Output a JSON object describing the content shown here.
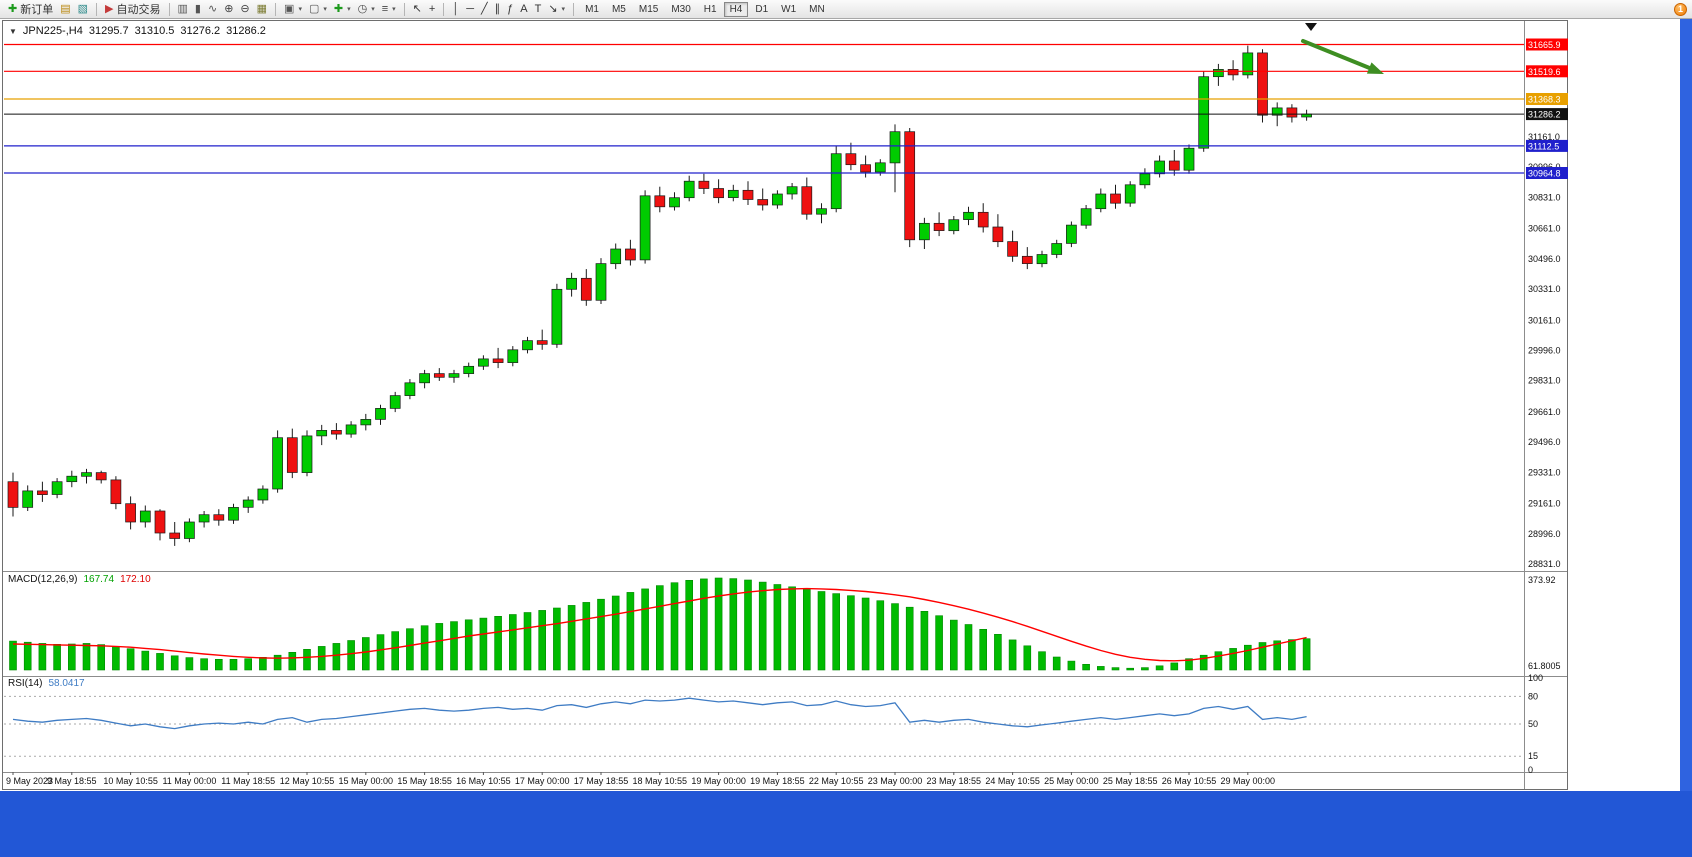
{
  "window": {
    "frame_color": "#2257d6",
    "scrollbar_color": "#2f63e0",
    "notification_badge": "1"
  },
  "toolbar": {
    "buttons": [
      {
        "name": "new-order-button",
        "icon": "new-order-icon",
        "glyph": "✚",
        "color": "#1d9b1d",
        "label": "新订单"
      },
      {
        "name": "chart-window-button",
        "icon": "chart-window-icon",
        "glyph": "▤",
        "color": "#b8860b"
      },
      {
        "name": "profiles-button",
        "icon": "profiles-icon",
        "glyph": "▧",
        "color": "#2e8b8b"
      },
      {
        "sep": true
      },
      {
        "name": "autotrading-button",
        "icon": "autotrading-icon",
        "glyph": "▶",
        "color": "#c43a3a",
        "label": "自动交易"
      },
      {
        "sep": true
      },
      {
        "name": "bar-chart-button",
        "icon": "bar-chart-icon",
        "glyph": "▥",
        "color": "#555555"
      },
      {
        "name": "candlestick-chart-button",
        "icon": "candlesticks-icon",
        "glyph": "▮",
        "color": "#555555"
      },
      {
        "name": "line-chart-button",
        "icon": "line-chart-icon",
        "glyph": "∿",
        "color": "#555555"
      },
      {
        "name": "zoom-in-button",
        "icon": "zoom-in-icon",
        "glyph": "⊕",
        "color": "#444444"
      },
      {
        "name": "zoom-out-button",
        "icon": "zoom-out-icon",
        "glyph": "⊖",
        "color": "#444444"
      },
      {
        "name": "tile-windows-button",
        "icon": "tile-windows-icon",
        "glyph": "▦",
        "color": "#7a7a30"
      },
      {
        "sep": true
      },
      {
        "name": "new-chart-button",
        "icon": "new-chart-icon",
        "glyph": "▣",
        "color": "#555555",
        "caret": true
      },
      {
        "name": "chart-list-button",
        "icon": "chart-list-icon",
        "glyph": "▢",
        "color": "#555555",
        "caret": true
      },
      {
        "name": "add-indicator-button",
        "icon": "add-indicator-icon",
        "glyph": "✚",
        "color": "#1d9b1d",
        "caret": true
      },
      {
        "name": "period-button",
        "icon": "clock-icon",
        "glyph": "◷",
        "color": "#444444",
        "caret": true
      },
      {
        "name": "templates-button",
        "icon": "templates-icon",
        "glyph": "≡",
        "color": "#444444",
        "caret": true
      },
      {
        "sep": true
      },
      {
        "name": "cursor-button",
        "icon": "cursor-icon",
        "glyph": "↖",
        "color": "#333333"
      },
      {
        "name": "crosshair-button",
        "icon": "crosshair-icon",
        "glyph": "+",
        "color": "#333333"
      },
      {
        "sep": true
      },
      {
        "name": "vertical-line-button",
        "icon": "vertical-line-icon",
        "glyph": "│",
        "color": "#333333"
      },
      {
        "name": "horizontal-line-button",
        "icon": "horizontal-line-icon",
        "glyph": "─",
        "color": "#333333"
      },
      {
        "name": "trendline-button",
        "icon": "trendline-icon",
        "glyph": "╱",
        "color": "#333333"
      },
      {
        "name": "channel-button",
        "icon": "equidistant-channel-icon",
        "glyph": "∥",
        "color": "#333333"
      },
      {
        "name": "fibonacci-button",
        "icon": "fibonacci-icon",
        "glyph": "ƒ",
        "color": "#333333"
      },
      {
        "name": "text-button",
        "icon": "text-icon",
        "glyph": "A",
        "color": "#333333"
      },
      {
        "name": "label-button",
        "icon": "text-label-icon",
        "glyph": "T",
        "color": "#333333"
      },
      {
        "name": "arrows-button",
        "icon": "arrow-tools-icon",
        "glyph": "↘",
        "color": "#333333",
        "caret": true
      },
      {
        "sep": true
      }
    ],
    "timeframes": [
      "M1",
      "M5",
      "M15",
      "M30",
      "H1",
      "H4",
      "D1",
      "W1",
      "MN"
    ],
    "active_timeframe": "H4"
  },
  "chart": {
    "collapse_icon": "▼",
    "symbol": "JPN225-,H4",
    "open": "31295.7",
    "high": "31310.5",
    "low": "31276.2",
    "close": "31286.2"
  },
  "macd": {
    "title": "MACD(12,26,9)",
    "value_main": "167.74",
    "value_signal": "172.10",
    "value_main_color": "#00a000",
    "value_signal_color": "#dd0000"
  },
  "rsi": {
    "title": "RSI(14)",
    "value": "58.0417",
    "value_color": "#3f7cc4"
  },
  "chart_data": [
    {
      "type": "candlestick",
      "title": "JPN225-,H4",
      "up_color": "#00CC00",
      "down_color": "#EE1111",
      "outline_color": "#1a1a1a",
      "grid": false,
      "ylim": [
        28790,
        31790
      ],
      "y_ticks": [
        31161,
        30996,
        30831,
        30661,
        30496,
        30331,
        30161,
        29996,
        29831,
        29661,
        29496,
        29331,
        29161,
        28996,
        28831
      ],
      "x_label_every": 4,
      "x_labels": [
        "9 May 2023",
        "9 May 18:55",
        "10 May 10:55",
        "11 May 00:00",
        "11 May 18:55",
        "12 May 10:55",
        "15 May 00:00",
        "15 May 18:55",
        "16 May 10:55",
        "17 May 00:00",
        "17 May 18:55",
        "18 May 10:55",
        "19 May 00:00",
        "19 May 18:55",
        "22 May 10:55",
        "23 May 00:00",
        "23 May 18:55",
        "24 May 10:55",
        "25 May 00:00",
        "25 May 18:55",
        "26 May 10:55",
        "29 May 00:00"
      ],
      "hlines": [
        {
          "price": 31665.9,
          "label": "31665.9",
          "color": "#FF0000"
        },
        {
          "price": 31519.6,
          "label": "31519.6",
          "color": "#FF0000"
        },
        {
          "price": 31368.3,
          "label": "31368.3",
          "color": "#E8A000"
        },
        {
          "price": 31112.5,
          "label": "31112.5",
          "color": "#2020CC"
        },
        {
          "price": 30964.8,
          "label": "30964.8",
          "color": "#2020CC"
        }
      ],
      "current_price": {
        "value": 31286.2,
        "label": "31286.2",
        "color": "#111111"
      },
      "annotations": [
        {
          "type": "arrow",
          "color": "#3E8E22"
        },
        {
          "type": "bar-marker",
          "color": "#111111"
        }
      ],
      "ohlc": [
        [
          29280,
          29330,
          29090,
          29140
        ],
        [
          29140,
          29260,
          29120,
          29230
        ],
        [
          29230,
          29280,
          29170,
          29210
        ],
        [
          29210,
          29300,
          29190,
          29280
        ],
        [
          29280,
          29340,
          29250,
          29310
        ],
        [
          29310,
          29350,
          29270,
          29330
        ],
        [
          29330,
          29340,
          29270,
          29290
        ],
        [
          29290,
          29310,
          29130,
          29160
        ],
        [
          29160,
          29200,
          29020,
          29060
        ],
        [
          29060,
          29150,
          29030,
          29120
        ],
        [
          29120,
          29130,
          28960,
          29000
        ],
        [
          29000,
          29060,
          28930,
          28970
        ],
        [
          28970,
          29080,
          28950,
          29060
        ],
        [
          29060,
          29120,
          29030,
          29100
        ],
        [
          29100,
          29130,
          29040,
          29070
        ],
        [
          29070,
          29160,
          29050,
          29140
        ],
        [
          29140,
          29200,
          29110,
          29180
        ],
        [
          29180,
          29260,
          29160,
          29240
        ],
        [
          29240,
          29560,
          29220,
          29520
        ],
        [
          29520,
          29570,
          29300,
          29330
        ],
        [
          29330,
          29560,
          29310,
          29530
        ],
        [
          29530,
          29590,
          29480,
          29560
        ],
        [
          29560,
          29600,
          29510,
          29540
        ],
        [
          29540,
          29610,
          29520,
          29590
        ],
        [
          29590,
          29650,
          29560,
          29620
        ],
        [
          29620,
          29700,
          29590,
          29680
        ],
        [
          29680,
          29770,
          29660,
          29750
        ],
        [
          29750,
          29840,
          29730,
          29820
        ],
        [
          29820,
          29890,
          29790,
          29870
        ],
        [
          29870,
          29900,
          29830,
          29850
        ],
        [
          29850,
          29890,
          29820,
          29870
        ],
        [
          29870,
          29930,
          29850,
          29910
        ],
        [
          29910,
          29970,
          29890,
          29950
        ],
        [
          29950,
          30010,
          29900,
          29930
        ],
        [
          29930,
          30020,
          29910,
          30000
        ],
        [
          30000,
          30070,
          29980,
          30050
        ],
        [
          30050,
          30110,
          30000,
          30030
        ],
        [
          30030,
          30360,
          30010,
          30330
        ],
        [
          30330,
          30420,
          30290,
          30390
        ],
        [
          30390,
          30440,
          30240,
          30270
        ],
        [
          30270,
          30500,
          30250,
          30470
        ],
        [
          30470,
          30580,
          30440,
          30550
        ],
        [
          30550,
          30600,
          30460,
          30490
        ],
        [
          30490,
          30870,
          30470,
          30840
        ],
        [
          30840,
          30890,
          30750,
          30780
        ],
        [
          30780,
          30860,
          30760,
          30830
        ],
        [
          30830,
          30950,
          30810,
          30920
        ],
        [
          30920,
          30960,
          30850,
          30880
        ],
        [
          30880,
          30930,
          30800,
          30830
        ],
        [
          30830,
          30900,
          30810,
          30870
        ],
        [
          30870,
          30920,
          30790,
          30820
        ],
        [
          30820,
          30880,
          30760,
          30790
        ],
        [
          30790,
          30870,
          30770,
          30850
        ],
        [
          30850,
          30910,
          30820,
          30890
        ],
        [
          30890,
          30940,
          30710,
          30740
        ],
        [
          30740,
          30800,
          30690,
          30770
        ],
        [
          30770,
          31110,
          30750,
          31070
        ],
        [
          31070,
          31130,
          30980,
          31010
        ],
        [
          31010,
          31060,
          30940,
          30970
        ],
        [
          30970,
          31040,
          30950,
          31020
        ],
        [
          31020,
          31230,
          30860,
          31190
        ],
        [
          31190,
          31210,
          30560,
          30600
        ],
        [
          30600,
          30720,
          30550,
          30690
        ],
        [
          30690,
          30750,
          30620,
          30650
        ],
        [
          30650,
          30730,
          30630,
          30710
        ],
        [
          30710,
          30780,
          30680,
          30750
        ],
        [
          30750,
          30800,
          30640,
          30670
        ],
        [
          30670,
          30740,
          30560,
          30590
        ],
        [
          30590,
          30650,
          30480,
          30510
        ],
        [
          30510,
          30560,
          30440,
          30470
        ],
        [
          30470,
          30540,
          30450,
          30520
        ],
        [
          30520,
          30600,
          30500,
          30580
        ],
        [
          30580,
          30700,
          30560,
          30680
        ],
        [
          30680,
          30790,
          30660,
          30770
        ],
        [
          30770,
          30880,
          30750,
          30850
        ],
        [
          30850,
          30900,
          30770,
          30800
        ],
        [
          30800,
          30920,
          30780,
          30900
        ],
        [
          30900,
          30990,
          30880,
          30960
        ],
        [
          30960,
          31060,
          30940,
          31030
        ],
        [
          31030,
          31090,
          30950,
          30980
        ],
        [
          30980,
          31120,
          30960,
          31100
        ],
        [
          31100,
          31520,
          31080,
          31490
        ],
        [
          31490,
          31560,
          31440,
          31530
        ],
        [
          31530,
          31580,
          31470,
          31500
        ],
        [
          31500,
          31660,
          31480,
          31620
        ],
        [
          31620,
          31640,
          31240,
          31280
        ],
        [
          31280,
          31350,
          31220,
          31320
        ],
        [
          31320,
          31340,
          31240,
          31270
        ],
        [
          31270,
          31310,
          31250,
          31286
        ]
      ]
    },
    {
      "type": "bar",
      "name": "MACD(12,26,9)",
      "bar_color": "#00BB00",
      "bar_outline": "#008800",
      "ylim": [
        61.8005,
        373.92
      ],
      "scale_labels": {
        "top": "373.92",
        "bottom": "61.8005"
      },
      "values": [
        160,
        156,
        152,
        149,
        150,
        152,
        148,
        142,
        134,
        126,
        118,
        110,
        104,
        100,
        98,
        98,
        100,
        105,
        112,
        122,
        132,
        142,
        152,
        162,
        172,
        182,
        192,
        202,
        212,
        220,
        226,
        232,
        238,
        244,
        250,
        257,
        264,
        272,
        281,
        291,
        302,
        313,
        325,
        337,
        348,
        358,
        366,
        371,
        374,
        372,
        367,
        360,
        352,
        344,
        336,
        328,
        321,
        314,
        306,
        297,
        287,
        275,
        261,
        246,
        231,
        216,
        200,
        183,
        164,
        144,
        124,
        106,
        92,
        81,
        74,
        70,
        68,
        70,
        76,
        86,
        100,
        112,
        124,
        135,
        146,
        155,
        161,
        165,
        168
      ],
      "signal": {
        "name": "signal",
        "color": "#FF0000",
        "values": [
          150,
          149,
          148,
          147,
          146,
          145,
          144,
          142,
          139,
          135,
          131,
          126,
          121,
          116,
          112,
          108,
          105,
          103,
          102,
          103,
          105,
          108,
          112,
          117,
          123,
          130,
          137,
          145,
          153,
          161,
          169,
          177,
          184,
          191,
          198,
          205,
          212,
          219,
          227,
          235,
          243,
          251,
          260,
          269,
          278,
          287,
          296,
          305,
          313,
          320,
          326,
          331,
          335,
          337,
          338,
          337,
          335,
          332,
          328,
          323,
          317,
          310,
          301,
          291,
          280,
          268,
          255,
          241,
          226,
          210,
          193,
          176,
          159,
          143,
          128,
          115,
          105,
          98,
          94,
          93,
          95,
          101,
          109,
          118,
          128,
          139,
          150,
          161,
          172
        ]
      }
    },
    {
      "type": "line",
      "name": "RSI(14)",
      "color": "#3F7CC4",
      "ylim": [
        0,
        100
      ],
      "levels": [
        80,
        50,
        15
      ],
      "y_tick_labels": [
        "100",
        "80",
        "50",
        "15",
        "0"
      ],
      "values": [
        55,
        53,
        52,
        54,
        55,
        56,
        54,
        51,
        48,
        50,
        47,
        45,
        48,
        50,
        51,
        50,
        52,
        50,
        55,
        57,
        52,
        55,
        56,
        58,
        60,
        62,
        64,
        66,
        67,
        65,
        64,
        65,
        67,
        68,
        66,
        67,
        65,
        70,
        71,
        68,
        72,
        74,
        72,
        76,
        75,
        76,
        78,
        76,
        74,
        75,
        73,
        71,
        73,
        74,
        70,
        71,
        75,
        71,
        69,
        70,
        73,
        52,
        54,
        52,
        54,
        55,
        52,
        50,
        48,
        47,
        49,
        51,
        53,
        55,
        57,
        55,
        57,
        59,
        61,
        59,
        61,
        67,
        69,
        66,
        69,
        55,
        57,
        55,
        58
      ]
    }
  ]
}
